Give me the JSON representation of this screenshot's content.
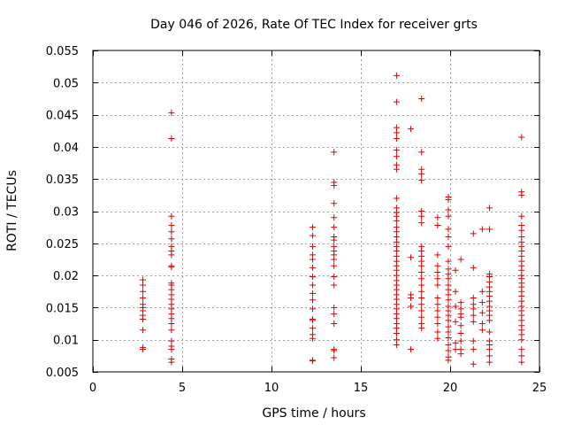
{
  "chart_data": {
    "type": "scatter",
    "title": "Day 046 of 2026, Rate Of TEC Index for receiver grts",
    "xlabel": "GPS time / hours",
    "ylabel": "ROTI / TECUs",
    "xlim": [
      0,
      25
    ],
    "ylim": [
      0.005,
      0.055
    ],
    "xticks": [
      0,
      5,
      10,
      15,
      20,
      25
    ],
    "yticks": [
      0.005,
      0.01,
      0.015,
      0.02,
      0.025,
      0.03,
      0.035,
      0.04,
      0.045,
      0.05,
      0.055
    ],
    "xtick_labels": [
      "0",
      "5",
      "10",
      "15",
      "20",
      "25"
    ],
    "ytick_labels": [
      "0.005",
      "0.01",
      "0.015",
      "0.02",
      "0.025",
      "0.03",
      "0.035",
      "0.04",
      "0.045",
      "0.05",
      "0.055"
    ],
    "grid": true,
    "marker": "+",
    "color": "#e00000",
    "series": [
      {
        "name": "ROTI",
        "points": [
          [
            2.8,
            0.0088
          ],
          [
            2.8,
            0.0085
          ],
          [
            2.8,
            0.0115
          ],
          [
            2.8,
            0.0132
          ],
          [
            2.8,
            0.0138
          ],
          [
            2.8,
            0.0145
          ],
          [
            2.8,
            0.015
          ],
          [
            2.8,
            0.0155
          ],
          [
            2.8,
            0.0165
          ],
          [
            2.8,
            0.0175
          ],
          [
            2.8,
            0.0185
          ],
          [
            2.8,
            0.0193
          ],
          [
            4.4,
            0.0453
          ],
          [
            4.4,
            0.0413
          ],
          [
            4.4,
            0.0292
          ],
          [
            4.4,
            0.0278
          ],
          [
            4.4,
            0.0268
          ],
          [
            4.4,
            0.0257
          ],
          [
            4.4,
            0.0245
          ],
          [
            4.4,
            0.0238
          ],
          [
            4.4,
            0.0232
          ],
          [
            4.4,
            0.0215
          ],
          [
            4.4,
            0.0213
          ],
          [
            4.4,
            0.0188
          ],
          [
            4.4,
            0.0185
          ],
          [
            4.4,
            0.0178
          ],
          [
            4.4,
            0.017
          ],
          [
            4.4,
            0.0163
          ],
          [
            4.4,
            0.0155
          ],
          [
            4.4,
            0.0148
          ],
          [
            4.4,
            0.014
          ],
          [
            4.4,
            0.0133
          ],
          [
            4.4,
            0.0125
          ],
          [
            4.4,
            0.0115
          ],
          [
            4.4,
            0.0098
          ],
          [
            4.4,
            0.009
          ],
          [
            4.4,
            0.0085
          ],
          [
            4.4,
            0.007
          ],
          [
            4.4,
            0.0065
          ],
          [
            12.3,
            0.0275
          ],
          [
            12.3,
            0.0262
          ],
          [
            12.3,
            0.0245
          ],
          [
            12.3,
            0.0232
          ],
          [
            12.3,
            0.0225
          ],
          [
            12.3,
            0.0212
          ],
          [
            12.3,
            0.0198
          ],
          [
            12.3,
            0.0185
          ],
          [
            12.3,
            0.0172
          ],
          [
            12.3,
            0.0162
          ],
          [
            12.3,
            0.0148
          ],
          [
            12.3,
            0.0132
          ],
          [
            12.3,
            0.013
          ],
          [
            12.3,
            0.0118
          ],
          [
            12.3,
            0.0108
          ],
          [
            12.3,
            0.0102
          ],
          [
            12.3,
            0.0068
          ],
          [
            12.3,
            0.0067
          ],
          [
            13.5,
            0.0392
          ],
          [
            13.5,
            0.0345
          ],
          [
            13.5,
            0.034
          ],
          [
            13.5,
            0.0312
          ],
          [
            13.5,
            0.029
          ],
          [
            13.5,
            0.0275
          ],
          [
            13.5,
            0.026
          ],
          [
            13.5,
            0.0255
          ],
          [
            13.5,
            0.0245
          ],
          [
            13.5,
            0.0238
          ],
          [
            13.5,
            0.0232
          ],
          [
            13.5,
            0.0225
          ],
          [
            13.5,
            0.0215
          ],
          [
            13.5,
            0.0198
          ],
          [
            13.5,
            0.0185
          ],
          [
            13.5,
            0.015
          ],
          [
            13.5,
            0.014
          ],
          [
            13.5,
            0.0125
          ],
          [
            13.5,
            0.0085
          ],
          [
            13.5,
            0.0083
          ],
          [
            13.5,
            0.0072
          ],
          [
            17.0,
            0.0511
          ],
          [
            17.0,
            0.047
          ],
          [
            17.0,
            0.043
          ],
          [
            17.0,
            0.0422
          ],
          [
            17.0,
            0.0413
          ],
          [
            17.0,
            0.0395
          ],
          [
            17.0,
            0.0385
          ],
          [
            17.0,
            0.0372
          ],
          [
            17.0,
            0.0365
          ],
          [
            17.0,
            0.032
          ],
          [
            17.0,
            0.0305
          ],
          [
            17.0,
            0.0298
          ],
          [
            17.0,
            0.0292
          ],
          [
            17.0,
            0.0285
          ],
          [
            17.0,
            0.0275
          ],
          [
            17.0,
            0.0268
          ],
          [
            17.0,
            0.026
          ],
          [
            17.0,
            0.0252
          ],
          [
            17.0,
            0.0245
          ],
          [
            17.0,
            0.0238
          ],
          [
            17.0,
            0.023
          ],
          [
            17.0,
            0.0222
          ],
          [
            17.0,
            0.0215
          ],
          [
            17.0,
            0.0208
          ],
          [
            17.0,
            0.02
          ],
          [
            17.0,
            0.0192
          ],
          [
            17.0,
            0.0185
          ],
          [
            17.0,
            0.0178
          ],
          [
            17.0,
            0.017
          ],
          [
            17.0,
            0.0163
          ],
          [
            17.0,
            0.0155
          ],
          [
            17.0,
            0.0148
          ],
          [
            17.0,
            0.014
          ],
          [
            17.0,
            0.0133
          ],
          [
            17.0,
            0.0125
          ],
          [
            17.0,
            0.0118
          ],
          [
            17.0,
            0.011
          ],
          [
            17.0,
            0.01
          ],
          [
            17.0,
            0.0092
          ],
          [
            17.8,
            0.0428
          ],
          [
            17.8,
            0.0228
          ],
          [
            17.8,
            0.017
          ],
          [
            17.8,
            0.0165
          ],
          [
            17.8,
            0.0152
          ],
          [
            17.8,
            0.0085
          ],
          [
            18.4,
            0.0475
          ],
          [
            18.4,
            0.0392
          ],
          [
            18.4,
            0.0365
          ],
          [
            18.4,
            0.0358
          ],
          [
            18.4,
            0.0348
          ],
          [
            18.4,
            0.03
          ],
          [
            18.4,
            0.0292
          ],
          [
            18.4,
            0.0282
          ],
          [
            18.4,
            0.0245
          ],
          [
            18.4,
            0.0238
          ],
          [
            18.4,
            0.023
          ],
          [
            18.4,
            0.0222
          ],
          [
            18.4,
            0.0215
          ],
          [
            18.4,
            0.0205
          ],
          [
            18.4,
            0.0195
          ],
          [
            18.4,
            0.0185
          ],
          [
            18.4,
            0.0175
          ],
          [
            18.4,
            0.0165
          ],
          [
            18.4,
            0.0155
          ],
          [
            18.4,
            0.0145
          ],
          [
            18.4,
            0.0135
          ],
          [
            18.4,
            0.0125
          ],
          [
            18.4,
            0.0118
          ],
          [
            19.3,
            0.029
          ],
          [
            19.3,
            0.0278
          ],
          [
            19.3,
            0.0232
          ],
          [
            19.3,
            0.0215
          ],
          [
            19.3,
            0.0205
          ],
          [
            19.3,
            0.0195
          ],
          [
            19.3,
            0.0185
          ],
          [
            19.3,
            0.0165
          ],
          [
            19.3,
            0.0155
          ],
          [
            19.3,
            0.0145
          ],
          [
            19.3,
            0.0135
          ],
          [
            19.3,
            0.0125
          ],
          [
            19.3,
            0.0112
          ],
          [
            19.3,
            0.0102
          ],
          [
            19.9,
            0.0322
          ],
          [
            19.9,
            0.0318
          ],
          [
            19.9,
            0.0302
          ],
          [
            19.9,
            0.0292
          ],
          [
            19.9,
            0.0272
          ],
          [
            19.9,
            0.026
          ],
          [
            19.9,
            0.0245
          ],
          [
            19.9,
            0.0222
          ],
          [
            19.9,
            0.021
          ],
          [
            19.9,
            0.0202
          ],
          [
            19.9,
            0.0195
          ],
          [
            19.9,
            0.0185
          ],
          [
            19.9,
            0.0178
          ],
          [
            19.9,
            0.017
          ],
          [
            19.9,
            0.0162
          ],
          [
            19.9,
            0.0152
          ],
          [
            19.9,
            0.0145
          ],
          [
            19.9,
            0.0138
          ],
          [
            19.9,
            0.013
          ],
          [
            19.9,
            0.012
          ],
          [
            19.9,
            0.0112
          ],
          [
            19.9,
            0.0103
          ],
          [
            19.9,
            0.0092
          ],
          [
            19.9,
            0.0083
          ],
          [
            19.9,
            0.0073
          ],
          [
            19.9,
            0.0068
          ],
          [
            20.3,
            0.0208
          ],
          [
            20.3,
            0.0175
          ],
          [
            20.3,
            0.0152
          ],
          [
            20.3,
            0.0128
          ],
          [
            20.3,
            0.0095
          ],
          [
            20.3,
            0.0085
          ],
          [
            20.6,
            0.0225
          ],
          [
            20.6,
            0.0158
          ],
          [
            20.6,
            0.0148
          ],
          [
            20.6,
            0.014
          ],
          [
            20.6,
            0.0135
          ],
          [
            20.6,
            0.0122
          ],
          [
            20.6,
            0.011
          ],
          [
            20.6,
            0.0098
          ],
          [
            20.6,
            0.0085
          ],
          [
            20.6,
            0.0078
          ],
          [
            21.3,
            0.0265
          ],
          [
            21.3,
            0.0212
          ],
          [
            21.3,
            0.0165
          ],
          [
            21.3,
            0.0155
          ],
          [
            21.3,
            0.0148
          ],
          [
            21.3,
            0.0138
          ],
          [
            21.3,
            0.0128
          ],
          [
            21.3,
            0.0098
          ],
          [
            21.3,
            0.0085
          ],
          [
            21.3,
            0.0062
          ],
          [
            21.8,
            0.0272
          ],
          [
            21.8,
            0.0175
          ],
          [
            21.8,
            0.0158
          ],
          [
            21.8,
            0.0142
          ],
          [
            21.8,
            0.0125
          ],
          [
            21.8,
            0.0115
          ],
          [
            22.2,
            0.0305
          ],
          [
            22.2,
            0.0272
          ],
          [
            22.2,
            0.0202
          ],
          [
            22.2,
            0.0198
          ],
          [
            22.2,
            0.019
          ],
          [
            22.2,
            0.0182
          ],
          [
            22.2,
            0.0175
          ],
          [
            22.2,
            0.0168
          ],
          [
            22.2,
            0.016
          ],
          [
            22.2,
            0.0152
          ],
          [
            22.2,
            0.0145
          ],
          [
            22.2,
            0.0138
          ],
          [
            22.2,
            0.013
          ],
          [
            22.2,
            0.0112
          ],
          [
            22.2,
            0.0098
          ],
          [
            22.2,
            0.0092
          ],
          [
            22.2,
            0.0085
          ],
          [
            22.2,
            0.0075
          ],
          [
            22.2,
            0.0065
          ],
          [
            24.0,
            0.0415
          ],
          [
            24.0,
            0.033
          ],
          [
            24.0,
            0.0325
          ],
          [
            24.0,
            0.0292
          ],
          [
            24.0,
            0.0278
          ],
          [
            24.0,
            0.027
          ],
          [
            24.0,
            0.026
          ],
          [
            24.0,
            0.0252
          ],
          [
            24.0,
            0.0245
          ],
          [
            24.0,
            0.0238
          ],
          [
            24.0,
            0.023
          ],
          [
            24.0,
            0.0222
          ],
          [
            24.0,
            0.0215
          ],
          [
            24.0,
            0.0208
          ],
          [
            24.0,
            0.02
          ],
          [
            24.0,
            0.0195
          ],
          [
            24.0,
            0.0188
          ],
          [
            24.0,
            0.0182
          ],
          [
            24.0,
            0.0175
          ],
          [
            24.0,
            0.0168
          ],
          [
            24.0,
            0.016
          ],
          [
            24.0,
            0.0152
          ],
          [
            24.0,
            0.0145
          ],
          [
            24.0,
            0.0138
          ],
          [
            24.0,
            0.013
          ],
          [
            24.0,
            0.0122
          ],
          [
            24.0,
            0.0115
          ],
          [
            24.0,
            0.0108
          ],
          [
            24.0,
            0.01
          ],
          [
            24.0,
            0.0085
          ],
          [
            24.0,
            0.0075
          ],
          [
            24.0,
            0.0065
          ]
        ]
      }
    ]
  }
}
